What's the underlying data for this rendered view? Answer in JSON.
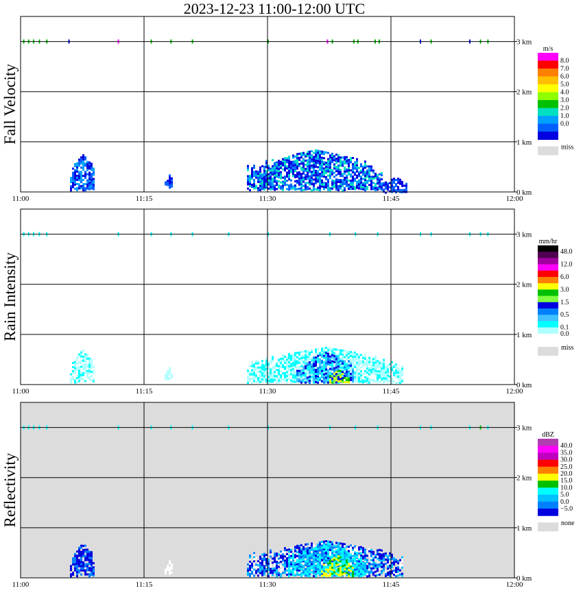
{
  "title": "2023-12-23  11:00-12:00 UTC",
  "chart_data": [
    {
      "type": "heatmap",
      "ylabel": "Fall Velocity",
      "x_ticks": [
        "11:00",
        "11:15",
        "11:30",
        "11:45",
        "12:00"
      ],
      "y_ticks": [
        "3 km",
        "2 km",
        "1 km",
        "0 km"
      ],
      "ylim": [
        0,
        3.5
      ],
      "background": "#ffffff",
      "legend": {
        "unit": "m/s",
        "labels": [
          "8.0",
          "7.0",
          "6.0",
          "5.0",
          "4.0",
          "3.0",
          "2.0",
          "1.0",
          "0.0"
        ],
        "colors": [
          "#ff00ff",
          "#ff0000",
          "#ff7f00",
          "#ffbf00",
          "#ffff00",
          "#8fff00",
          "#00c000",
          "#00e0c0",
          "#00a0ff",
          "#0060ff",
          "#0000e0"
        ],
        "miss_label": "miss",
        "miss_color": "#dcdcdc"
      },
      "echoes": [
        {
          "t": [
            6,
            9
          ],
          "h": [
            0.05,
            0.75
          ],
          "colors": [
            "#0000e0",
            "#0060ff",
            "#00a0ff"
          ]
        },
        {
          "t": [
            17.5,
            18.5
          ],
          "h": [
            0.1,
            0.35
          ],
          "colors": [
            "#0000e0",
            "#0060ff"
          ]
        },
        {
          "t": [
            27.5,
            44
          ],
          "h": [
            0.05,
            0.85
          ],
          "colors": [
            "#0000e0",
            "#0000e0",
            "#0060ff",
            "#00a0ff",
            "#00e0c0"
          ]
        },
        {
          "t": [
            44,
            47
          ],
          "h": [
            0.0,
            0.3
          ],
          "colors": [
            "#0000e0",
            "#0060ff"
          ]
        }
      ],
      "clutter": [
        {
          "t": 0.3,
          "c": "#00c000"
        },
        {
          "t": 0.9,
          "c": "#00c000"
        },
        {
          "t": 1.5,
          "c": "#00c000"
        },
        {
          "t": 2.2,
          "c": "#00c000"
        },
        {
          "t": 3.1,
          "c": "#00c000"
        },
        {
          "t": 5.8,
          "c": "#0000e0"
        },
        {
          "t": 11.8,
          "c": "#ff00ff"
        },
        {
          "t": 15.8,
          "c": "#00c000"
        },
        {
          "t": 18.2,
          "c": "#00c000"
        },
        {
          "t": 20.8,
          "c": "#00c000"
        },
        {
          "t": 30.0,
          "c": "#00c000"
        },
        {
          "t": 37.2,
          "c": "#ff00ff"
        },
        {
          "t": 37.8,
          "c": "#00c000"
        },
        {
          "t": 40.4,
          "c": "#00c000"
        },
        {
          "t": 40.9,
          "c": "#00c000"
        },
        {
          "t": 43.0,
          "c": "#00c000"
        },
        {
          "t": 43.5,
          "c": "#00c000"
        },
        {
          "t": 48.5,
          "c": "#0000e0"
        },
        {
          "t": 49.8,
          "c": "#00c000"
        },
        {
          "t": 54.5,
          "c": "#0000e0"
        },
        {
          "t": 55.8,
          "c": "#00c000"
        },
        {
          "t": 56.7,
          "c": "#00c000"
        }
      ]
    },
    {
      "type": "heatmap",
      "ylabel": "Rain Intensity",
      "x_ticks": [
        "11:00",
        "11:15",
        "11:30",
        "11:45",
        "12:00"
      ],
      "y_ticks": [
        "3 km",
        "2 km",
        "1 km",
        "0 km"
      ],
      "ylim": [
        0,
        3.5
      ],
      "background": "#ffffff",
      "legend": {
        "unit": "mm/hr",
        "labels": [
          "48.0",
          "12.0",
          "6.0",
          "3.0",
          "1.5",
          "0.5",
          "0.1",
          "0.0"
        ],
        "label_slots": [
          1,
          3,
          5,
          7,
          9,
          11,
          13,
          14
        ],
        "colors": [
          "#000000",
          "#500050",
          "#a000a0",
          "#ff00ff",
          "#ff0000",
          "#ff7f00",
          "#ffff00",
          "#00c000",
          "#80ff40",
          "#0000e0",
          "#0080ff",
          "#40c0ff",
          "#00ffff",
          "#b0ffff",
          "#ffffff"
        ],
        "miss_label": "miss",
        "miss_color": "#dcdcdc"
      },
      "echoes": [
        {
          "t": [
            6,
            9
          ],
          "h": [
            0.05,
            0.7
          ],
          "colors": [
            "#b0ffff",
            "#b0ffff",
            "#00ffff"
          ]
        },
        {
          "t": [
            17.5,
            18.5
          ],
          "h": [
            0.1,
            0.35
          ],
          "colors": [
            "#b0ffff"
          ]
        },
        {
          "t": [
            27.5,
            46.5
          ],
          "h": [
            0.05,
            0.75
          ],
          "colors": [
            "#b0ffff",
            "#b0ffff",
            "#b0ffff",
            "#00ffff",
            "#00ffff"
          ]
        },
        {
          "t": [
            33.5,
            40.5
          ],
          "h": [
            0.05,
            0.65
          ],
          "colors": [
            "#40c0ff",
            "#0080ff",
            "#0000e0",
            "#00ffff"
          ]
        },
        {
          "t": [
            37.5,
            39.8
          ],
          "h": [
            0.05,
            0.3
          ],
          "colors": [
            "#80ff40",
            "#00c000",
            "#ffff00",
            "#0000e0"
          ]
        }
      ],
      "clutter": [
        {
          "t": 0.3,
          "c": "#00ffff"
        },
        {
          "t": 0.9,
          "c": "#00ffff"
        },
        {
          "t": 1.5,
          "c": "#00ffff"
        },
        {
          "t": 2.2,
          "c": "#00ffff"
        },
        {
          "t": 3.1,
          "c": "#00ffff"
        },
        {
          "t": 11.8,
          "c": "#00ffff"
        },
        {
          "t": 15.8,
          "c": "#00ffff"
        },
        {
          "t": 18.2,
          "c": "#00ffff"
        },
        {
          "t": 20.8,
          "c": "#00ffff"
        },
        {
          "t": 25.2,
          "c": "#00ffff"
        },
        {
          "t": 30.0,
          "c": "#00ffff"
        },
        {
          "t": 37.5,
          "c": "#00ffff"
        },
        {
          "t": 40.6,
          "c": "#00ffff"
        },
        {
          "t": 43.3,
          "c": "#00ffff"
        },
        {
          "t": 48.5,
          "c": "#00ffff"
        },
        {
          "t": 49.8,
          "c": "#00ffff"
        },
        {
          "t": 54.5,
          "c": "#00ffff"
        },
        {
          "t": 55.8,
          "c": "#00ffff"
        },
        {
          "t": 56.7,
          "c": "#00ffff"
        }
      ]
    },
    {
      "type": "heatmap",
      "ylabel": "Reflectivity",
      "x_ticks": [
        "11:00",
        "11:15",
        "11:30",
        "11:45",
        "12:00"
      ],
      "y_ticks": [
        "3 km",
        "2 km",
        "1 km",
        "0 km"
      ],
      "ylim": [
        0,
        3.5
      ],
      "background": "#dcdcdc",
      "legend": {
        "unit": "dBZ",
        "labels": [
          "40.0",
          "35.0",
          "30.0",
          "25.0",
          "20.0",
          "15.0",
          "10.0",
          "5.0",
          "0.0",
          "−5.0"
        ],
        "colors": [
          "#b040b0",
          "#ff00ff",
          "#c000c0",
          "#ff0000",
          "#ff7f00",
          "#ffff00",
          "#00c000",
          "#00ffff",
          "#00c0ff",
          "#0080ff",
          "#0000e0"
        ],
        "miss_label": "none",
        "miss_color": "#dcdcdc"
      },
      "echoes": [
        {
          "t": [
            6,
            9
          ],
          "h": [
            0.05,
            0.7
          ],
          "colors": [
            "#0000e0",
            "#0000e0",
            "#0080ff"
          ]
        },
        {
          "t": [
            17.5,
            18.5
          ],
          "h": [
            0.1,
            0.35
          ],
          "colors": [
            "#ffffff"
          ]
        },
        {
          "t": [
            27.5,
            46.5
          ],
          "h": [
            0.05,
            0.75
          ],
          "colors": [
            "#0000e0",
            "#0000e0",
            "#0080ff",
            "#00c0ff",
            "#ffffff"
          ]
        },
        {
          "t": [
            32.5,
            42
          ],
          "h": [
            0.05,
            0.7
          ],
          "colors": [
            "#00ffff",
            "#00c0ff",
            "#00ffff",
            "#0080ff"
          ]
        },
        {
          "t": [
            36.5,
            40.5
          ],
          "h": [
            0.05,
            0.45
          ],
          "colors": [
            "#00c000",
            "#ffff00",
            "#ffff00",
            "#00ffff"
          ]
        }
      ],
      "clutter": [
        {
          "t": 0.3,
          "c": "#00ffff"
        },
        {
          "t": 0.9,
          "c": "#00ffff"
        },
        {
          "t": 1.5,
          "c": "#00ffff"
        },
        {
          "t": 2.2,
          "c": "#00ffff"
        },
        {
          "t": 3.1,
          "c": "#00ffff"
        },
        {
          "t": 11.8,
          "c": "#00ffff"
        },
        {
          "t": 15.8,
          "c": "#00ffff"
        },
        {
          "t": 18.2,
          "c": "#00ffff"
        },
        {
          "t": 20.8,
          "c": "#00ffff"
        },
        {
          "t": 25.2,
          "c": "#00ffff"
        },
        {
          "t": 30.0,
          "c": "#00ffff"
        },
        {
          "t": 37.5,
          "c": "#00ffff"
        },
        {
          "t": 40.6,
          "c": "#00ffff"
        },
        {
          "t": 43.3,
          "c": "#00ffff"
        },
        {
          "t": 48.5,
          "c": "#00ffff"
        },
        {
          "t": 49.8,
          "c": "#00ffff"
        },
        {
          "t": 54.5,
          "c": "#00ffff"
        },
        {
          "t": 55.8,
          "c": "#00c000"
        },
        {
          "t": 56.7,
          "c": "#00ffff"
        }
      ]
    }
  ]
}
